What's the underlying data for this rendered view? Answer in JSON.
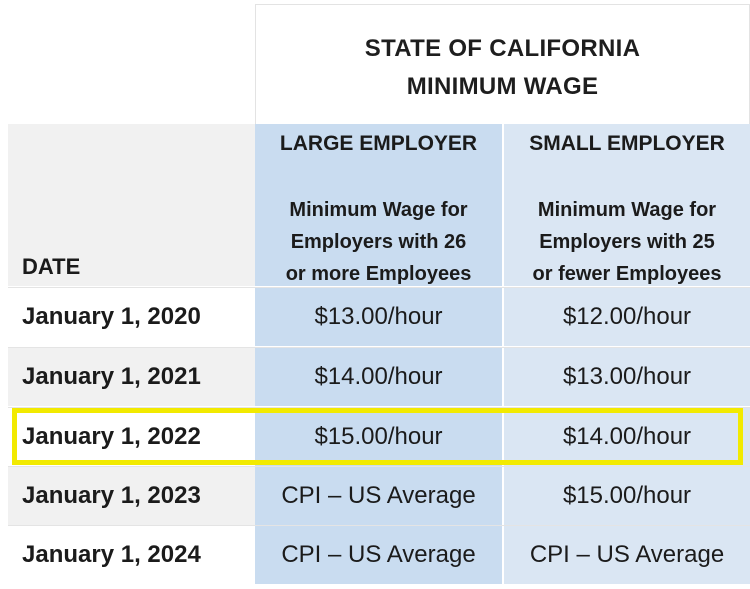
{
  "title": {
    "line1": "STATE OF CALIFORNIA",
    "line2": "MINIMUM WAGE"
  },
  "header": {
    "date_label": "DATE",
    "large": {
      "name": "LARGE EMPLOYER",
      "sub1": "Minimum Wage for",
      "sub2": "Employers with 26",
      "sub3": "or more Employees"
    },
    "small": {
      "name": "SMALL EMPLOYER",
      "sub1": "Minimum Wage for",
      "sub2": "Employers with 25",
      "sub3": "or fewer Employees"
    }
  },
  "rows": [
    {
      "date": "January 1, 2020",
      "large": "$13.00/hour",
      "small": "$12.00/hour"
    },
    {
      "date": "January 1, 2021",
      "large": "$14.00/hour",
      "small": "$13.00/hour"
    },
    {
      "date": "January 1, 2022",
      "large": "$15.00/hour",
      "small": "$14.00/hour"
    },
    {
      "date": "January 1, 2023",
      "large": "CPI – US Average",
      "small": "$15.00/hour"
    },
    {
      "date": "January 1, 2024",
      "large": "CPI – US Average",
      "small": "CPI – US Average"
    }
  ],
  "colors": {
    "large_column": "#c9dcf0",
    "small_column": "#dae6f3",
    "highlight": "#f2ea00"
  }
}
